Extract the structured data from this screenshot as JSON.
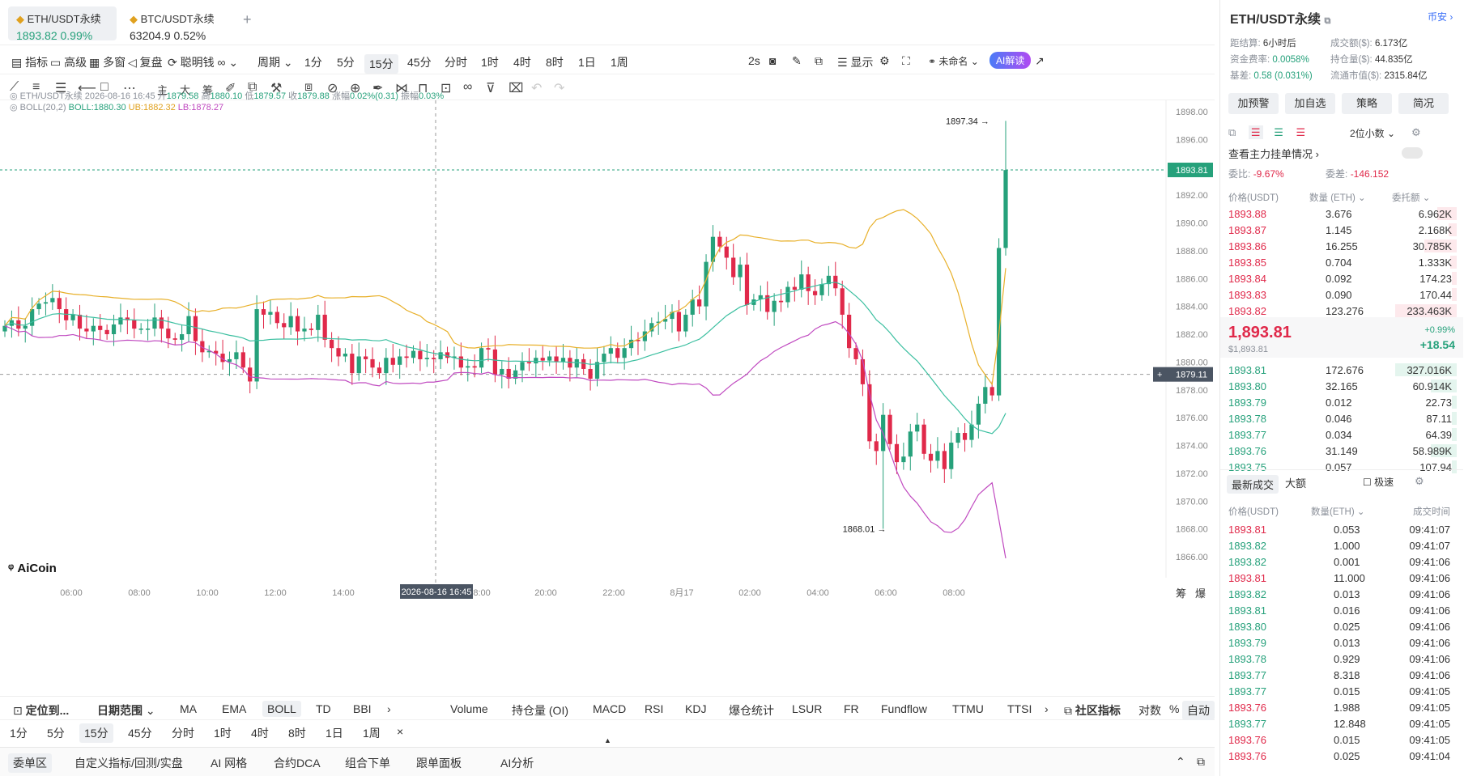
{
  "tabs": [
    {
      "name": "ETH/USDT永续",
      "price": "1893.82",
      "chg": "0.99%"
    },
    {
      "name": "BTC/USDT永续",
      "price": "63204.9",
      "chg": "0.52%"
    },
    {
      "add": "+"
    }
  ],
  "toolbar": {
    "indicators": "指标",
    "advanced": "高级",
    "multi": "多窗",
    "replay": "复盘",
    "smart": "聪明钱",
    "period": "周期",
    "times": [
      "1分",
      "5分",
      "15分",
      "45分",
      "分时",
      "1时",
      "4时",
      "8时",
      "1日",
      "1周"
    ],
    "selected_time": "15分",
    "interval": "2s",
    "display": "显示",
    "unnamed": "未命名",
    "ai": "AI解读"
  },
  "drawtools": [
    "主",
    "大",
    "筹"
  ],
  "legend": {
    "symbol": "ETH/USDT永续",
    "datetime": "2026-08-16 16:45",
    "open_l": "开",
    "open": "1879.58",
    "high_l": "高",
    "high": "1880.10",
    "low_l": "低",
    "low": "1879.57",
    "close_l": "收",
    "close": "1879.88",
    "chg_l": "涨幅",
    "chg": "0.02%(0.31)",
    "amp_l": "振幅",
    "amp": "0.03%",
    "boll": "BOLL(20,2)",
    "boll_v": "BOLL:1880.30",
    "ub": "UB:1882.32",
    "lb": "LB:1878.27"
  },
  "chart_data": {
    "type": "candlestick",
    "y_ticks": [
      "1898.00",
      "1896.00",
      "1894.00",
      "1892.00",
      "1890.00",
      "1888.00",
      "1886.00",
      "1884.00",
      "1882.00",
      "1880.00",
      "1878.00",
      "1876.00",
      "1874.00",
      "1872.00",
      "1870.00",
      "1868.00",
      "1866.00"
    ],
    "x_ticks": [
      "06:00",
      "08:00",
      "10:00",
      "12:00",
      "14:00",
      "",
      "18:00",
      "20:00",
      "22:00",
      "8月17",
      "02:00",
      "04:00",
      "06:00",
      "08:00"
    ],
    "cursor_date": "2026-08-16 16:45",
    "last_price": "1893.81",
    "cursor_price": "1879.11",
    "max_label": "1897.34",
    "min_label": "1868.01",
    "logo": "AiCoin",
    "colors": {
      "up": "#26a17b",
      "down": "#e0294a",
      "ub": "#e8b02a",
      "mid": "#3bbfa0",
      "lb": "#c04ac0"
    }
  },
  "bottom_tabs": {
    "locate": "定位到...",
    "range": "日期范围",
    "inds": [
      "MA",
      "EMA",
      "BOLL",
      "TD",
      "BBI"
    ],
    "subs": [
      "Volume",
      "持仓量 (OI)",
      "MACD",
      "RSI",
      "KDJ",
      "爆仓统计",
      "LSUR",
      "FR",
      "Fundflow",
      "TTMU",
      "TTSI"
    ],
    "community": "社区指标",
    "log": "对数",
    "pct": "%",
    "auto": "自动",
    "right_icons": [
      "筹",
      "爆"
    ]
  },
  "bottom_times": [
    "1分",
    "5分",
    "15分",
    "45分",
    "分时",
    "1时",
    "4时",
    "8时",
    "1日",
    "1周"
  ],
  "bottom_bar": [
    "委单区",
    "自定义指标/回测/实盘",
    "AI 网格",
    "合约DCA",
    "组合下单",
    "跟单面板",
    "AI分析"
  ],
  "panel": {
    "title": "ETH/USDT永续",
    "coin_link": "币安",
    "settle_l": "距结算:",
    "settle": "6小时后",
    "vol_l": "成交额($):",
    "vol": "6.173亿",
    "fund_l": "资金费率:",
    "fund": "0.0058%",
    "oi_l": "持仓量($):",
    "oi": "44.835亿",
    "basis_l": "基差:",
    "basis": "0.58 (0.031%)",
    "mcap_l": "流通市值($):",
    "mcap": "2315.84亿",
    "buttons": [
      "加预警",
      "加自选",
      "策略",
      "简况"
    ],
    "decimals": "2位小数",
    "order_flow": "查看主力挂单情况",
    "ratio_l": "委比:",
    "ratio": "-9.67%",
    "diff_l": "委差:",
    "diff": "-146.152",
    "headers": [
      "价格(USDT)",
      "数量 (ETH)",
      "委托额"
    ],
    "asks": [
      [
        "1893.88",
        "3.676",
        "6.962K"
      ],
      [
        "1893.87",
        "1.145",
        "2.168K"
      ],
      [
        "1893.86",
        "16.255",
        "30.785K"
      ],
      [
        "1893.85",
        "0.704",
        "1.333K"
      ],
      [
        "1893.84",
        "0.092",
        "174.23"
      ],
      [
        "1893.83",
        "0.090",
        "170.44"
      ],
      [
        "1893.82",
        "123.276",
        "233.463K"
      ]
    ],
    "last": "1,893.81",
    "last_usd": "$1,893.81",
    "last_pct": "+0.99%",
    "last_chg": "+18.54",
    "bids": [
      [
        "1893.81",
        "172.676",
        "327.016K"
      ],
      [
        "1893.80",
        "32.165",
        "60.914K"
      ],
      [
        "1893.79",
        "0.012",
        "22.73"
      ],
      [
        "1893.78",
        "0.046",
        "87.11"
      ],
      [
        "1893.77",
        "0.034",
        "64.39"
      ],
      [
        "1893.76",
        "31.149",
        "58.989K"
      ],
      [
        "1893.75",
        "0.057",
        "107.94"
      ]
    ],
    "trade_tabs": [
      "最新成交",
      "大额"
    ],
    "fast": "极速",
    "trade_headers": [
      "价格(USDT)",
      "数量(ETH)",
      "成交时间"
    ],
    "trades": [
      [
        "1893.81",
        "0.053",
        "09:41:07",
        "r"
      ],
      [
        "1893.82",
        "1.000",
        "09:41:07",
        "g"
      ],
      [
        "1893.82",
        "0.001",
        "09:41:06",
        "g"
      ],
      [
        "1893.81",
        "11.000",
        "09:41:06",
        "r"
      ],
      [
        "1893.82",
        "0.013",
        "09:41:06",
        "g"
      ],
      [
        "1893.81",
        "0.016",
        "09:41:06",
        "g"
      ],
      [
        "1893.80",
        "0.025",
        "09:41:06",
        "g"
      ],
      [
        "1893.79",
        "0.013",
        "09:41:06",
        "g"
      ],
      [
        "1893.78",
        "0.929",
        "09:41:06",
        "g"
      ],
      [
        "1893.77",
        "8.318",
        "09:41:06",
        "g"
      ],
      [
        "1893.77",
        "0.015",
        "09:41:05",
        "g"
      ],
      [
        "1893.76",
        "1.988",
        "09:41:05",
        "r"
      ],
      [
        "1893.77",
        "12.848",
        "09:41:05",
        "g"
      ],
      [
        "1893.76",
        "0.015",
        "09:41:05",
        "r"
      ],
      [
        "1893.76",
        "0.025",
        "09:41:04",
        "r"
      ]
    ]
  }
}
